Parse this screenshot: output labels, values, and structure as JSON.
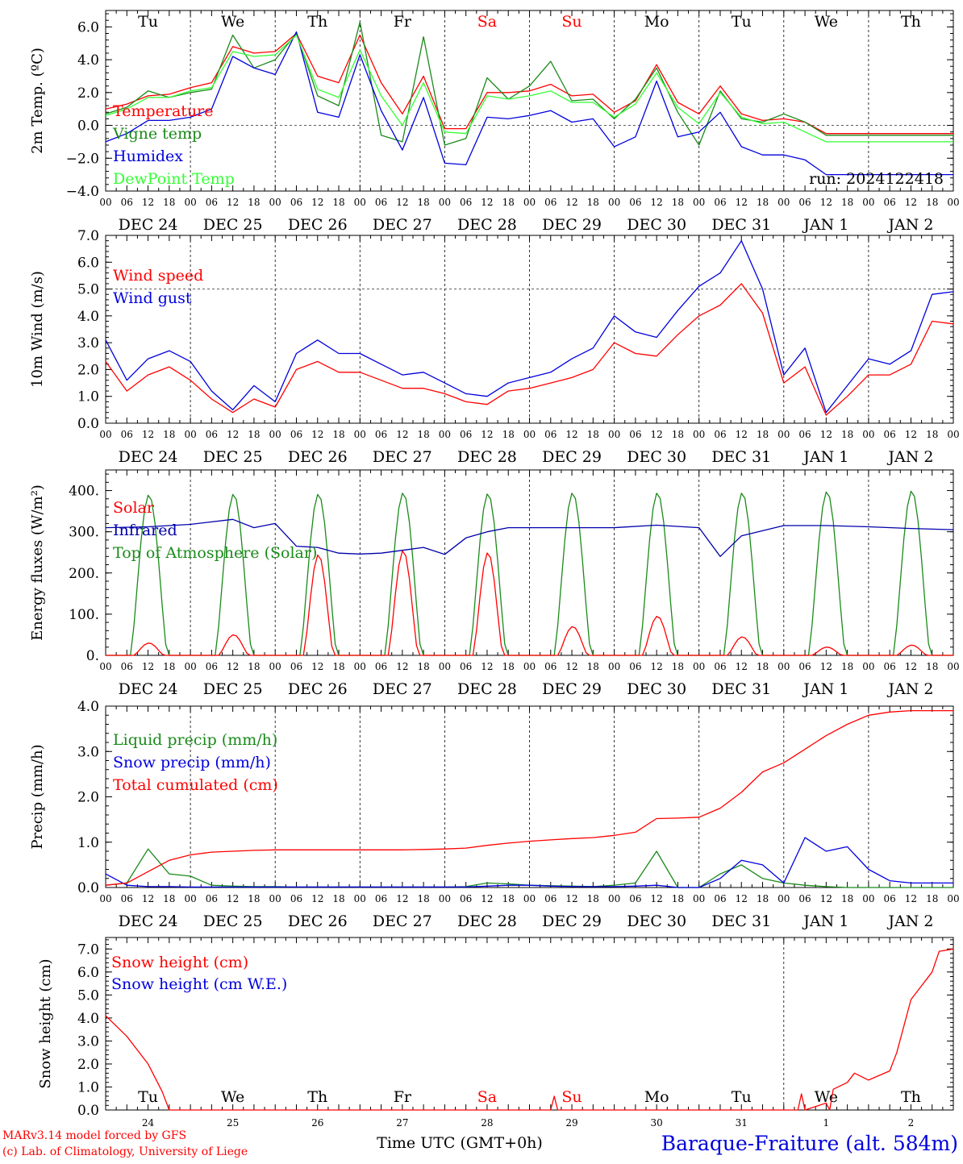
{
  "colors": {
    "red": "#ff0000",
    "green": "#1a8a1a",
    "blue": "#0000dd",
    "lightgreen": "#33ff33",
    "navy": "#0000aa",
    "axis": "#000000"
  },
  "footer": {
    "credit_line1": "MARv3.14 model forced by GFS",
    "credit_line2": "(c) Lab. of Climatology, University of Liege",
    "xlabel": "Time UTC (GMT+0h)",
    "station": "Baraque-Fraiture (alt. 584m)"
  },
  "time_axis": {
    "hour_labels": [
      "00",
      "06",
      "12",
      "18"
    ],
    "end_label": "00",
    "dates": [
      "DEC 24",
      "DEC 25",
      "DEC 26",
      "DEC 27",
      "DEC 28",
      "DEC 29",
      "DEC 30",
      "DEC 31",
      "JAN  1",
      "JAN  2"
    ],
    "weekdays": [
      "Tu",
      "We",
      "Th",
      "Fr",
      "Sa",
      "Su",
      "Mo",
      "Tu",
      "We",
      "Th"
    ],
    "weekend_flags": [
      false,
      false,
      false,
      false,
      true,
      true,
      false,
      false,
      false,
      false
    ],
    "day_numbers": [
      "24",
      "25",
      "26",
      "27",
      "28",
      "29",
      "30",
      "31",
      "1",
      "2"
    ]
  },
  "chart_data": [
    {
      "type": "line",
      "ylabel": "2m Temp. (ºC)",
      "ylim": [
        -4,
        7
      ],
      "yticks": [
        -4,
        -2,
        0,
        2,
        4,
        6
      ],
      "ytick_labels": [
        "−4.0",
        "−2.0",
        "0.0",
        "2.0",
        "4.0",
        "6.0"
      ],
      "reference_line": 0,
      "run_label": "run: 2024122418",
      "show_weekdays_top": true,
      "x_hours": [
        0,
        6,
        12,
        18,
        24,
        30,
        36,
        42,
        48,
        54,
        60,
        66,
        72,
        78,
        84,
        90,
        96,
        102,
        108,
        114,
        120,
        126,
        132,
        138,
        144,
        150,
        156,
        162,
        168,
        174,
        180,
        186,
        192,
        198,
        204,
        210,
        216,
        222,
        228,
        234,
        240
      ],
      "series": [
        {
          "name": "Temperature",
          "color": "red",
          "values": [
            1.0,
            1.3,
            1.8,
            1.9,
            2.3,
            2.6,
            4.8,
            4.4,
            4.5,
            5.6,
            3.0,
            2.6,
            5.5,
            2.6,
            0.7,
            3.0,
            -0.2,
            -0.2,
            2.0,
            2.0,
            2.1,
            2.5,
            1.8,
            1.9,
            0.8,
            1.5,
            3.7,
            1.4,
            0.7,
            2.4,
            0.7,
            0.3,
            0.4,
            0.2,
            -0.5,
            -0.5,
            -0.5,
            -0.5,
            -0.5,
            -0.5,
            -0.5
          ]
        },
        {
          "name": "Vigne temp",
          "color": "green",
          "values": [
            0.7,
            1.1,
            2.1,
            1.7,
            2.0,
            2.2,
            5.5,
            3.5,
            4.0,
            5.6,
            1.8,
            1.2,
            6.3,
            -0.6,
            -1.0,
            5.4,
            -1.2,
            -0.8,
            2.9,
            1.6,
            2.4,
            3.9,
            1.5,
            1.6,
            0.4,
            1.6,
            3.5,
            0.8,
            -1.2,
            2.1,
            0.4,
            0.2,
            0.7,
            0.2,
            -0.6,
            -0.6,
            -0.6,
            -0.6,
            -0.6,
            -0.6,
            -0.6
          ]
        },
        {
          "name": "Humidex",
          "color": "blue",
          "values": [
            -1.0,
            -0.5,
            0.3,
            0.3,
            0.5,
            1.0,
            4.2,
            3.5,
            3.1,
            5.7,
            0.8,
            0.5,
            4.3,
            0.9,
            -1.5,
            1.7,
            -2.3,
            -2.4,
            0.5,
            0.4,
            0.6,
            0.9,
            0.2,
            0.4,
            -1.3,
            -0.7,
            2.7,
            -0.7,
            -0.4,
            0.8,
            -1.3,
            -1.8,
            -1.8,
            -2.1,
            -3.0,
            -3.0,
            -3.0,
            -3.0,
            -3.0,
            -3.0,
            -3.0
          ]
        },
        {
          "name": "DewPoint Temp",
          "color": "lightgreen",
          "values": [
            0.6,
            1.0,
            1.7,
            1.7,
            2.1,
            2.3,
            4.5,
            4.2,
            4.3,
            5.5,
            2.2,
            1.7,
            4.6,
            1.8,
            0.0,
            2.6,
            -0.4,
            -0.5,
            1.8,
            1.6,
            1.8,
            2.1,
            1.4,
            1.4,
            0.5,
            1.3,
            3.2,
            1.1,
            0.1,
            2.0,
            0.5,
            0.1,
            0.2,
            -0.4,
            -1.0,
            -1.0,
            -1.0,
            -1.0,
            -1.0,
            -1.0,
            -1.0
          ]
        }
      ]
    },
    {
      "type": "line",
      "ylabel": "10m Wind (m/s)",
      "ylim": [
        0,
        7
      ],
      "yticks": [
        0,
        1,
        2,
        3,
        4,
        5,
        6,
        7
      ],
      "ytick_labels": [
        "0.0",
        "1.0",
        "2.0",
        "3.0",
        "4.0",
        "5.0",
        "6.0",
        "7.0"
      ],
      "reference_line": 5,
      "show_weekdays_top": false,
      "x_hours": [
        0,
        6,
        12,
        18,
        24,
        30,
        36,
        42,
        48,
        54,
        60,
        66,
        72,
        78,
        84,
        90,
        96,
        102,
        108,
        114,
        120,
        126,
        132,
        138,
        144,
        150,
        156,
        162,
        168,
        174,
        180,
        186,
        192,
        198,
        204,
        210,
        216,
        222,
        228,
        234,
        240
      ],
      "series": [
        {
          "name": "Wind speed",
          "color": "red",
          "values": [
            2.3,
            1.2,
            1.8,
            2.1,
            1.6,
            0.9,
            0.4,
            0.9,
            0.6,
            2.0,
            2.3,
            1.9,
            1.9,
            1.6,
            1.3,
            1.3,
            1.1,
            0.8,
            0.7,
            1.2,
            1.3,
            1.5,
            1.7,
            2.0,
            3.0,
            2.6,
            2.5,
            3.3,
            4.0,
            4.4,
            5.2,
            4.1,
            1.5,
            2.1,
            0.3,
            1.0,
            1.8,
            1.8,
            2.2,
            3.8,
            3.7
          ]
        },
        {
          "name": "Wind gust",
          "color": "blue",
          "values": [
            3.1,
            1.6,
            2.4,
            2.7,
            2.3,
            1.2,
            0.5,
            1.4,
            0.8,
            2.6,
            3.1,
            2.6,
            2.6,
            2.2,
            1.8,
            1.9,
            1.5,
            1.1,
            1.0,
            1.5,
            1.7,
            1.9,
            2.4,
            2.8,
            4.0,
            3.4,
            3.2,
            4.2,
            5.1,
            5.6,
            6.8,
            5.0,
            1.8,
            2.8,
            0.4,
            1.4,
            2.4,
            2.2,
            2.7,
            4.8,
            4.9
          ]
        }
      ]
    },
    {
      "type": "line",
      "ylabel": "Energy fluxes (W/m²)",
      "ylim": [
        0,
        450
      ],
      "yticks": [
        0,
        100,
        200,
        300,
        400
      ],
      "ytick_labels": [
        "0.",
        "100.",
        "200.",
        "300.",
        "400."
      ],
      "show_weekdays_top": false,
      "daily_peaks": {
        "Solar": [
          30,
          50,
          245,
          255,
          250,
          70,
          95,
          45,
          20,
          25
        ],
        "Top of Atmosphere (Solar)": [
          390,
          392,
          392,
          395,
          393,
          395,
          395,
          395,
          398,
          400
        ]
      },
      "infrared": {
        "x_hours": [
          0,
          12,
          24,
          36,
          42,
          48,
          54,
          60,
          66,
          72,
          78,
          84,
          90,
          96,
          102,
          108,
          114,
          120,
          132,
          144,
          156,
          168,
          174,
          180,
          192,
          204,
          216,
          228,
          240
        ],
        "values": [
          310,
          312,
          318,
          330,
          310,
          320,
          265,
          262,
          248,
          246,
          248,
          255,
          262,
          245,
          285,
          300,
          310,
          310,
          310,
          310,
          316,
          310,
          240,
          290,
          315,
          315,
          312,
          308,
          305
        ]
      },
      "series": [
        {
          "name": "Solar",
          "color": "red"
        },
        {
          "name": "Infrared",
          "color": "navy"
        },
        {
          "name": "Top of Atmosphere (Solar)",
          "color": "green"
        }
      ]
    },
    {
      "type": "line",
      "ylabel": "Precip (mm/h)",
      "ylim": [
        0,
        4
      ],
      "yticks": [
        0,
        1,
        2,
        3,
        4
      ],
      "ytick_labels": [
        "0.0",
        "1.0",
        "2.0",
        "3.0",
        "4.0"
      ],
      "show_weekdays_top": false,
      "x_hours": [
        0,
        6,
        12,
        18,
        24,
        30,
        36,
        42,
        48,
        54,
        60,
        66,
        72,
        78,
        84,
        90,
        96,
        102,
        108,
        114,
        120,
        126,
        132,
        138,
        144,
        150,
        156,
        162,
        168,
        174,
        180,
        186,
        192,
        198,
        204,
        210,
        216,
        222,
        228,
        234,
        240
      ],
      "series": [
        {
          "name": "Liquid precip (mm/h)",
          "color": "green",
          "values": [
            0.05,
            0.1,
            0.85,
            0.3,
            0.25,
            0.05,
            0.03,
            0.02,
            0.02,
            0.01,
            0.01,
            0.01,
            0.01,
            0.01,
            0.01,
            0.01,
            0.01,
            0.02,
            0.1,
            0.08,
            0.05,
            0.04,
            0.03,
            0.02,
            0.05,
            0.1,
            0.8,
            0.0,
            0.0,
            0.3,
            0.5,
            0.2,
            0.1,
            0.05,
            0.02,
            0.0,
            0.0,
            0.0,
            0.0,
            0.0,
            0.0
          ]
        },
        {
          "name": "Snow precip (mm/h)",
          "color": "blue",
          "values": [
            0.3,
            0.05,
            0.02,
            0.02,
            0.01,
            0.01,
            0.01,
            0.01,
            0.01,
            0.01,
            0.01,
            0.01,
            0.01,
            0.01,
            0.01,
            0.01,
            0.01,
            0.01,
            0.03,
            0.05,
            0.05,
            0.03,
            0.02,
            0.02,
            0.02,
            0.03,
            0.05,
            0.0,
            0.0,
            0.2,
            0.6,
            0.5,
            0.1,
            1.1,
            0.8,
            0.9,
            0.4,
            0.15,
            0.1,
            0.1,
            0.1
          ]
        },
        {
          "name": "Total cumulated (cm)",
          "color": "red",
          "values": [
            0.05,
            0.1,
            0.35,
            0.6,
            0.72,
            0.78,
            0.8,
            0.82,
            0.83,
            0.83,
            0.83,
            0.83,
            0.83,
            0.83,
            0.83,
            0.84,
            0.85,
            0.87,
            0.93,
            0.98,
            1.02,
            1.05,
            1.08,
            1.1,
            1.15,
            1.22,
            1.52,
            1.53,
            1.55,
            1.75,
            2.1,
            2.55,
            2.75,
            3.05,
            3.35,
            3.6,
            3.8,
            3.87,
            3.9,
            3.9,
            3.9
          ]
        }
      ]
    },
    {
      "type": "line",
      "ylabel": "Snow height (cm)",
      "ylim": [
        0,
        7.5
      ],
      "yticks": [
        0,
        1,
        2,
        3,
        4,
        5,
        6,
        7
      ],
      "ytick_labels": [
        "0.0",
        "1.0",
        "2.0",
        "3.0",
        "4.0",
        "5.0",
        "6.0",
        "7.0"
      ],
      "show_weekdays_top": false,
      "show_weekdays_inside": true,
      "x_hours": [
        0,
        6,
        12,
        16,
        18,
        24,
        36,
        48,
        72,
        96,
        120,
        126,
        127,
        128,
        168,
        196,
        197,
        198,
        204,
        205,
        206,
        210,
        212,
        216,
        222,
        224,
        228,
        232,
        234,
        236,
        240
      ],
      "series": [
        {
          "name": "Snow height (cm)",
          "color": "red",
          "values": [
            4.1,
            3.2,
            2.0,
            0.8,
            0.0,
            0.0,
            0.0,
            0.0,
            0.0,
            0.0,
            0.0,
            0.0,
            0.6,
            0.0,
            0.0,
            0.0,
            0.7,
            0.0,
            0.3,
            0.0,
            0.9,
            1.2,
            1.6,
            1.3,
            1.7,
            2.5,
            4.8,
            5.6,
            6.0,
            6.9,
            7.0
          ]
        },
        {
          "name": "Snow height (cm W.E.)",
          "color": "blue",
          "values": []
        }
      ]
    }
  ]
}
